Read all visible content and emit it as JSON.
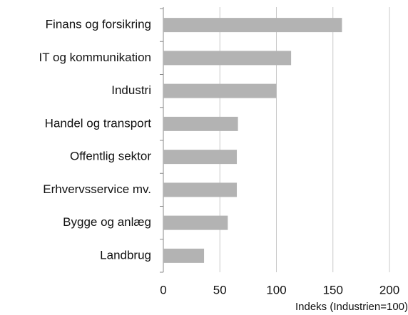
{
  "chart_data": {
    "type": "barh",
    "categories": [
      "Finans og forsikring",
      "IT og kommunikation",
      "Industri",
      "Handel og transport",
      "Offentlig sektor",
      "Erhvervsservice mv.",
      "Bygge og anlæg",
      "Landbrug"
    ],
    "values": [
      158,
      113,
      100,
      66,
      65,
      65,
      57,
      36
    ],
    "color": "#b3b3b3",
    "xlabel": "Indeks (Industrien=100)",
    "xlim": [
      0,
      200
    ],
    "xticks": [
      0,
      50,
      100,
      150,
      200
    ],
    "grid": true
  }
}
